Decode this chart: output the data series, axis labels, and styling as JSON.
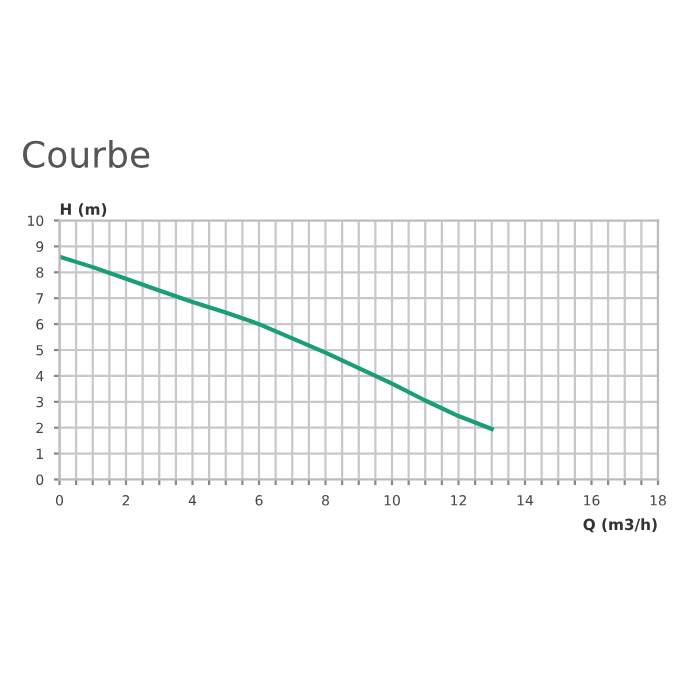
{
  "chart_data": {
    "type": "line",
    "title": "Courbe",
    "xlabel": "Q (m3/h)",
    "ylabel": "H (m)",
    "x": [
      0,
      1,
      2,
      3,
      4,
      5,
      6,
      7,
      8,
      9,
      10,
      11,
      12,
      13
    ],
    "series": [
      {
        "color": "#1a9e78",
        "values": [
          8.6,
          8.2,
          7.75,
          7.3,
          6.85,
          6.45,
          6.0,
          5.45,
          4.9,
          4.3,
          3.7,
          3.05,
          2.45,
          1.95
        ]
      }
    ],
    "xlim": [
      0,
      18
    ],
    "ylim": [
      0,
      10
    ],
    "xticks": [
      0,
      {
        "value": 0.5,
        "label": null
      },
      {
        "value": 1,
        "label": null
      },
      {
        "value": 1.5,
        "label": null
      },
      2,
      {
        "value": 2.5,
        "label": null
      },
      {
        "value": 3,
        "label": null
      },
      {
        "value": 3.5,
        "label": null
      },
      4,
      {
        "value": 4.5,
        "label": null
      },
      {
        "value": 5,
        "label": null
      },
      {
        "value": 5.5,
        "label": null
      },
      6,
      {
        "value": 6.5,
        "label": null
      },
      {
        "value": 7,
        "label": null
      },
      {
        "value": 7.5,
        "label": null
      },
      8,
      {
        "value": 8.5,
        "label": null
      },
      {
        "value": 9,
        "label": null
      },
      {
        "value": 9.5,
        "label": null
      },
      10,
      {
        "value": 10.5,
        "label": null
      },
      {
        "value": 11,
        "label": null
      },
      {
        "value": 11.5,
        "label": null
      },
      12,
      {
        "value": 12.5,
        "label": null
      },
      {
        "value": 13,
        "label": null
      },
      {
        "value": 13.5,
        "label": null
      },
      14,
      {
        "value": 14.5,
        "label": null
      },
      {
        "value": 15,
        "label": null
      },
      {
        "value": 15.5,
        "label": null
      },
      16,
      {
        "value": 16.5,
        "label": null
      },
      {
        "value": 17,
        "label": null
      },
      {
        "value": 17.5,
        "label": null
      },
      18
    ],
    "yticks": [
      0,
      1,
      2,
      3,
      4,
      5,
      6,
      7,
      8,
      9,
      10
    ],
    "grid": true,
    "marker": "none",
    "line_style": "solid"
  }
}
